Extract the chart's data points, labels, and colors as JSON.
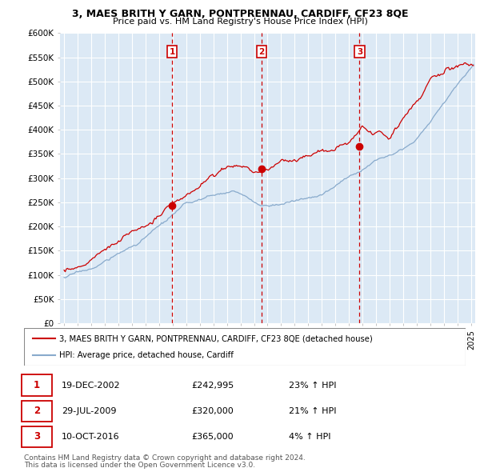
{
  "title_line1": "3, MAES BRITH Y GARN, PONTPRENNAU, CARDIFF, CF23 8QE",
  "title_line2": "Price paid vs. HM Land Registry's House Price Index (HPI)",
  "ylim": [
    0,
    600000
  ],
  "yticks": [
    0,
    50000,
    100000,
    150000,
    200000,
    250000,
    300000,
    350000,
    400000,
    450000,
    500000,
    550000,
    600000
  ],
  "ytick_labels": [
    "£0",
    "£50K",
    "£100K",
    "£150K",
    "£200K",
    "£250K",
    "£300K",
    "£350K",
    "£400K",
    "£450K",
    "£500K",
    "£550K",
    "£600K"
  ],
  "xlim_start": 1994.7,
  "xlim_end": 2025.3,
  "background_color": "#ffffff",
  "plot_bg_color": "#dce9f5",
  "grid_color": "#ffffff",
  "red_line_color": "#cc0000",
  "blue_line_color": "#88aacc",
  "vline_color": "#cc0000",
  "transactions": [
    {
      "num": 1,
      "date": "19-DEC-2002",
      "year": 2002.96,
      "price": 242995,
      "hpi_pct": "23% ↑ HPI"
    },
    {
      "num": 2,
      "date": "29-JUL-2009",
      "year": 2009.57,
      "price": 320000,
      "hpi_pct": "21% ↑ HPI"
    },
    {
      "num": 3,
      "date": "10-OCT-2016",
      "year": 2016.78,
      "price": 365000,
      "hpi_pct": "4% ↑ HPI"
    }
  ],
  "legend_line1": "3, MAES BRITH Y GARN, PONTPRENNAU, CARDIFF, CF23 8QE (detached house)",
  "legend_line2": "HPI: Average price, detached house, Cardiff",
  "footer1": "Contains HM Land Registry data © Crown copyright and database right 2024.",
  "footer2": "This data is licensed under the Open Government Licence v3.0."
}
